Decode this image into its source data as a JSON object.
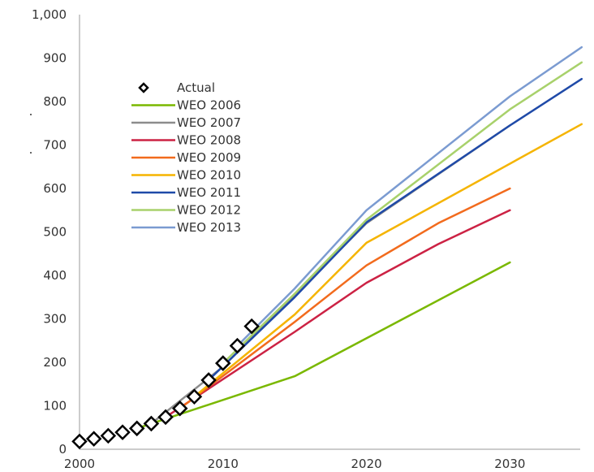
{
  "chart_data": {
    "type": "line",
    "title": "",
    "xlabel": "",
    "ylabel": "",
    "xlim": [
      2000,
      2035
    ],
    "ylim": [
      0,
      1000
    ],
    "x_ticks": [
      2000,
      2010,
      2020,
      2030
    ],
    "y_ticks": [
      0,
      100,
      200,
      300,
      400,
      500,
      600,
      700,
      800,
      900,
      1000
    ],
    "x_tick_labels": [
      "2000",
      "2010",
      "2020",
      "2030"
    ],
    "y_tick_labels": [
      "0",
      "100",
      "200",
      "300",
      "400",
      "500",
      "600",
      "700",
      "800",
      "900",
      "1,000"
    ],
    "grid": false,
    "legend_position": "upper-left-inside",
    "actual": {
      "name": "Actual",
      "color": "#000000",
      "marker": "diamond-open",
      "points": [
        {
          "x": 2000,
          "y": 18
        },
        {
          "x": 2001,
          "y": 24
        },
        {
          "x": 2002,
          "y": 31
        },
        {
          "x": 2003,
          "y": 39
        },
        {
          "x": 2004,
          "y": 48
        },
        {
          "x": 2005,
          "y": 59
        },
        {
          "x": 2006,
          "y": 74
        },
        {
          "x": 2007,
          "y": 94
        },
        {
          "x": 2008,
          "y": 121
        },
        {
          "x": 2009,
          "y": 159
        },
        {
          "x": 2010,
          "y": 198
        },
        {
          "x": 2011,
          "y": 238
        },
        {
          "x": 2012,
          "y": 283
        }
      ]
    },
    "series": [
      {
        "name": "WEO 2006",
        "color": "#7ab800",
        "points": [
          {
            "x": 2004,
            "y": 48
          },
          {
            "x": 2015,
            "y": 168
          },
          {
            "x": 2030,
            "y": 430
          }
        ]
      },
      {
        "name": "WEO 2007",
        "color": "#8c8c8c",
        "points": [
          {
            "x": 2005,
            "y": 59
          },
          {
            "x": 2010,
            "y": 190
          },
          {
            "x": 2020,
            "y": 520
          },
          {
            "x": 2030,
            "y": 745
          }
        ]
      },
      {
        "name": "WEO 2008",
        "color": "#cc2244",
        "points": [
          {
            "x": 2006,
            "y": 74
          },
          {
            "x": 2015,
            "y": 270
          },
          {
            "x": 2020,
            "y": 383
          },
          {
            "x": 2025,
            "y": 472
          },
          {
            "x": 2030,
            "y": 550
          }
        ]
      },
      {
        "name": "WEO 2009",
        "color": "#f26b1d",
        "points": [
          {
            "x": 2007,
            "y": 94
          },
          {
            "x": 2015,
            "y": 293
          },
          {
            "x": 2020,
            "y": 423
          },
          {
            "x": 2025,
            "y": 520
          },
          {
            "x": 2030,
            "y": 600
          }
        ]
      },
      {
        "name": "WEO 2010",
        "color": "#f5b400",
        "points": [
          {
            "x": 2008,
            "y": 121
          },
          {
            "x": 2015,
            "y": 310
          },
          {
            "x": 2020,
            "y": 475
          },
          {
            "x": 2035,
            "y": 748
          }
        ]
      },
      {
        "name": "WEO 2011",
        "color": "#1f4aa8",
        "points": [
          {
            "x": 2009,
            "y": 159
          },
          {
            "x": 2015,
            "y": 350
          },
          {
            "x": 2020,
            "y": 522
          },
          {
            "x": 2030,
            "y": 745
          },
          {
            "x": 2035,
            "y": 852
          }
        ]
      },
      {
        "name": "WEO 2012",
        "color": "#a8d16b",
        "points": [
          {
            "x": 2010,
            "y": 198
          },
          {
            "x": 2015,
            "y": 358
          },
          {
            "x": 2020,
            "y": 528
          },
          {
            "x": 2030,
            "y": 782
          },
          {
            "x": 2035,
            "y": 890
          }
        ]
      },
      {
        "name": "WEO 2013",
        "color": "#7b9bd1",
        "points": [
          {
            "x": 2011,
            "y": 238
          },
          {
            "x": 2015,
            "y": 370
          },
          {
            "x": 2020,
            "y": 550
          },
          {
            "x": 2030,
            "y": 812
          },
          {
            "x": 2035,
            "y": 925
          }
        ]
      }
    ]
  }
}
